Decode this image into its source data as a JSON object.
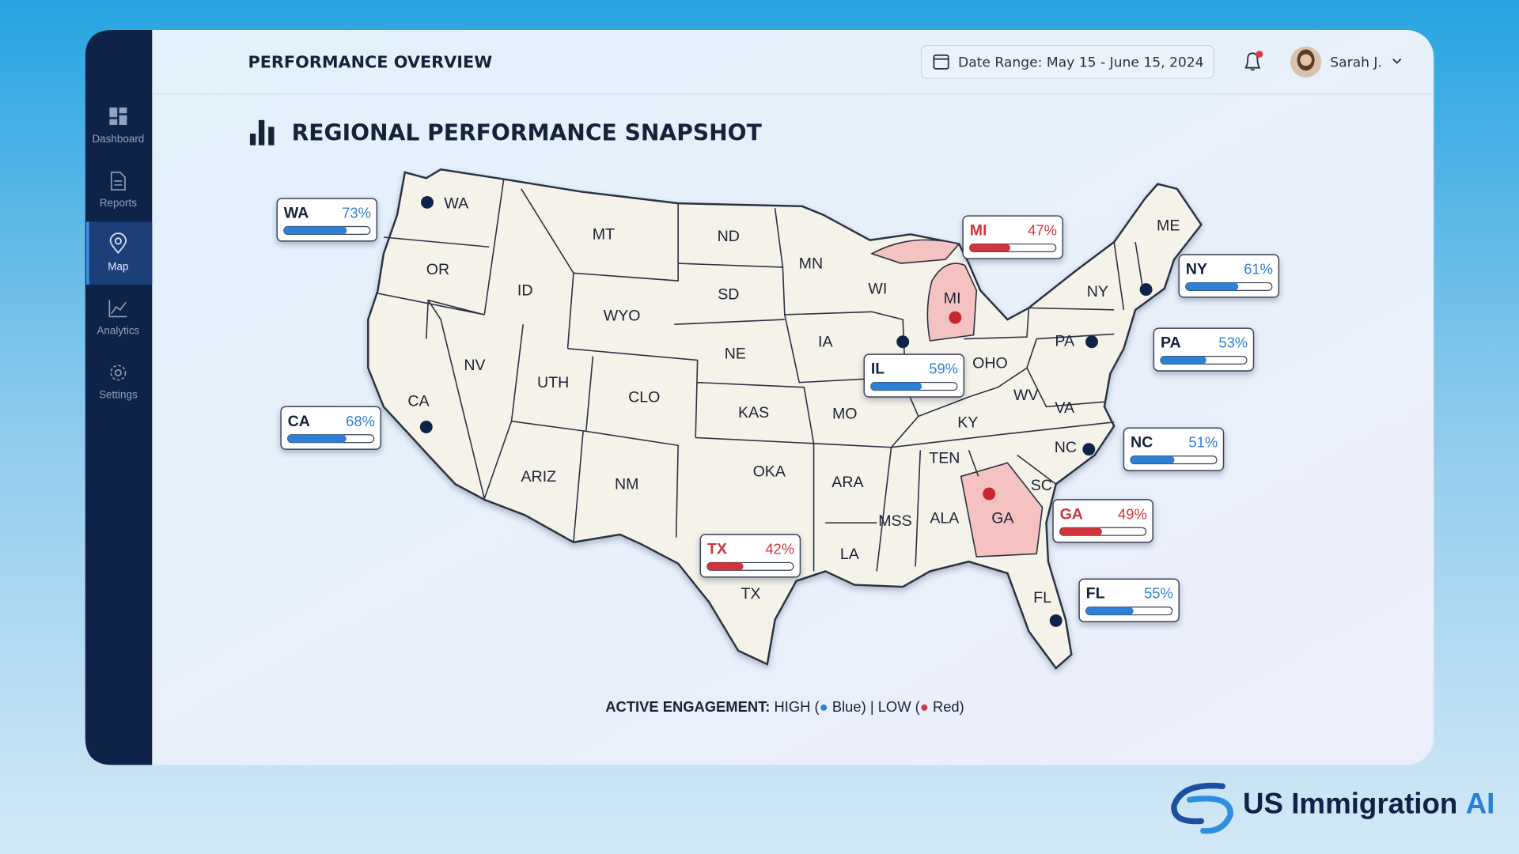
{
  "header": {
    "title": "PERFORMANCE OVERVIEW",
    "date_range": "Date Range: May 15 - June 15, 2024",
    "user": "Sarah J."
  },
  "sidebar": {
    "items": [
      "Dashboard",
      "Reports",
      "Map",
      "Analytics",
      "Settings"
    ],
    "active": "Map"
  },
  "section": {
    "title": "REGIONAL PERFORMANCE SNAPSHOT"
  },
  "map": {
    "states": [
      "WA",
      "OR",
      "MT",
      "ND",
      "MN",
      "ID",
      "WYO",
      "SD",
      "WI",
      "MI",
      "NY",
      "ME",
      "NV",
      "UTH",
      "CLO",
      "NE",
      "IA",
      "OHO",
      "PA",
      "CA",
      "KAS",
      "MO",
      "KY",
      "WV",
      "VA",
      "ARIZ",
      "NM",
      "OKA",
      "ARA",
      "TEN",
      "NC",
      "SC",
      "MSS",
      "ALA",
      "GA",
      "LA",
      "TX",
      "FL"
    ],
    "callouts": [
      {
        "state": "WA",
        "value": 73,
        "label": "73%",
        "level": "high"
      },
      {
        "state": "CA",
        "value": 68,
        "label": "68%",
        "level": "high"
      },
      {
        "state": "IL",
        "value": 59,
        "label": "59%",
        "level": "high"
      },
      {
        "state": "MI",
        "value": 47,
        "label": "47%",
        "level": "low"
      },
      {
        "state": "NY",
        "value": 61,
        "label": "61%",
        "level": "high"
      },
      {
        "state": "PA",
        "value": 53,
        "label": "53%",
        "level": "high"
      },
      {
        "state": "NC",
        "value": 51,
        "label": "51%",
        "level": "high"
      },
      {
        "state": "GA",
        "value": 49,
        "label": "49%",
        "level": "low"
      },
      {
        "state": "TX",
        "value": 42,
        "label": "42%",
        "level": "low"
      },
      {
        "state": "FL",
        "value": 55,
        "label": "55%",
        "level": "high"
      }
    ]
  },
  "legend": {
    "label": "ACTIVE ENGAGEMENT:",
    "high_prefix": "HIGH (",
    "high_suffix": "Blue)",
    "separator": "|",
    "low_prefix": "LOW (",
    "low_suffix": "Red)",
    "colors": {
      "high": "#2f7fd6",
      "low": "#d0343c"
    }
  },
  "brand": {
    "name": "US Immigration",
    "accent": "AI"
  }
}
